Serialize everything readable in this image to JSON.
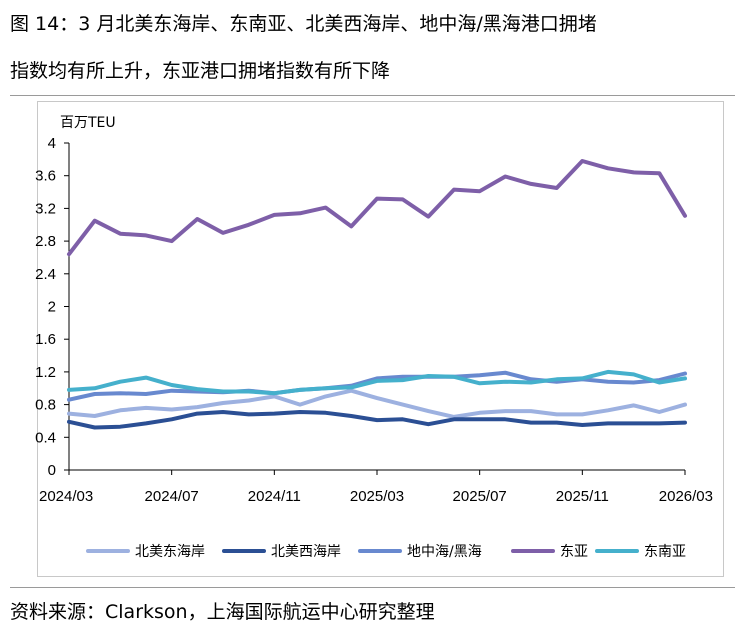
{
  "title": {
    "line1": "图 14：3 月北美东海岸、东南亚、北美西海岸、地中海/黑海港口拥堵",
    "line2": "指数均有所上升，东亚港口拥堵指数有所下降"
  },
  "source": "资料来源：Clarkson，上海国际航运中心研究整理",
  "chart_data": {
    "type": "line",
    "unit_label": "百万TEU",
    "ylim": [
      0,
      4
    ],
    "yticks": [
      0,
      0.4,
      0.8,
      1.2,
      1.6,
      2,
      2.4,
      2.8,
      3.2,
      3.6,
      4
    ],
    "ytick_labels": [
      "0",
      "0.4",
      "0.8",
      "1.2",
      "1.6",
      "2",
      "2.4",
      "2.8",
      "3.2",
      "3.6",
      "4"
    ],
    "x_tick_labels": [
      "2024/03",
      "2024/07",
      "2024/11",
      "2025/03",
      "2025/07",
      "2025/11",
      "2026/03"
    ],
    "x_tick_index": [
      0,
      4,
      8,
      12,
      16,
      20,
      24
    ],
    "legend_position": "bottom",
    "series": [
      {
        "name": "北美东海岸",
        "color": "#9db1e0",
        "values": [
          0.69,
          0.66,
          0.73,
          0.76,
          0.74,
          0.77,
          0.82,
          0.85,
          0.9,
          0.8,
          0.9,
          0.97,
          0.88,
          0.8,
          0.72,
          0.65,
          0.7,
          0.72,
          0.72,
          0.68,
          0.68,
          0.73,
          0.79,
          0.71,
          0.8
        ]
      },
      {
        "name": "北美西海岸",
        "color": "#2b4f94",
        "values": [
          0.59,
          0.52,
          0.53,
          0.57,
          0.62,
          0.69,
          0.71,
          0.68,
          0.69,
          0.71,
          0.7,
          0.66,
          0.61,
          0.62,
          0.56,
          0.62,
          0.62,
          0.62,
          0.58,
          0.58,
          0.55,
          0.57,
          0.57,
          0.57,
          0.58
        ]
      },
      {
        "name": "地中海/黑海",
        "color": "#6889cf",
        "values": [
          0.86,
          0.93,
          0.94,
          0.93,
          0.97,
          0.96,
          0.95,
          0.97,
          0.94,
          0.98,
          1.0,
          1.03,
          1.12,
          1.14,
          1.14,
          1.14,
          1.16,
          1.19,
          1.11,
          1.08,
          1.11,
          1.08,
          1.07,
          1.1,
          1.18
        ]
      },
      {
        "name": "东亚",
        "color": "#7e5fa8",
        "values": [
          2.64,
          3.05,
          2.89,
          2.87,
          2.8,
          3.07,
          2.9,
          3.0,
          3.12,
          3.14,
          3.21,
          2.98,
          3.32,
          3.31,
          3.1,
          3.43,
          3.41,
          3.59,
          3.5,
          3.45,
          3.78,
          3.69,
          3.64,
          3.63,
          3.11
        ]
      },
      {
        "name": "东南亚",
        "color": "#45b0cc",
        "values": [
          0.98,
          1.0,
          1.08,
          1.13,
          1.04,
          0.99,
          0.96,
          0.96,
          0.94,
          0.98,
          1.0,
          1.01,
          1.09,
          1.1,
          1.15,
          1.14,
          1.06,
          1.08,
          1.07,
          1.11,
          1.12,
          1.2,
          1.17,
          1.07,
          1.12
        ]
      }
    ]
  }
}
